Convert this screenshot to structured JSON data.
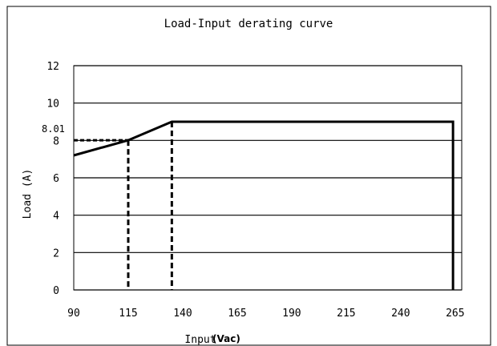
{
  "chart_data": {
    "type": "line",
    "title": "Load-Input derating curve",
    "xlabel": "Input",
    "xlabel_unit": "(Vac)",
    "ylabel": "Load (A)",
    "xlim": [
      90,
      268
    ],
    "ylim": [
      0,
      12
    ],
    "x_ticks": [
      90,
      115,
      140,
      165,
      190,
      215,
      240,
      265
    ],
    "y_ticks": [
      0,
      2,
      4,
      6,
      8,
      10,
      12
    ],
    "grid": "horizontal",
    "legend": "none",
    "series": [
      {
        "x": [
          90,
          115,
          135,
          264,
          264
        ],
        "y": [
          7.2,
          8.01,
          9.0,
          9.0,
          0
        ]
      }
    ],
    "annotations": [
      {
        "text": "8.01",
        "x": 115,
        "y": 8.01,
        "style": "dashed-guides"
      },
      {
        "x": 135,
        "y": 9.0,
        "style": "dashed-drop"
      }
    ],
    "colors": {
      "line": "#000000",
      "grid": "#000000",
      "frame": "#000000"
    }
  }
}
